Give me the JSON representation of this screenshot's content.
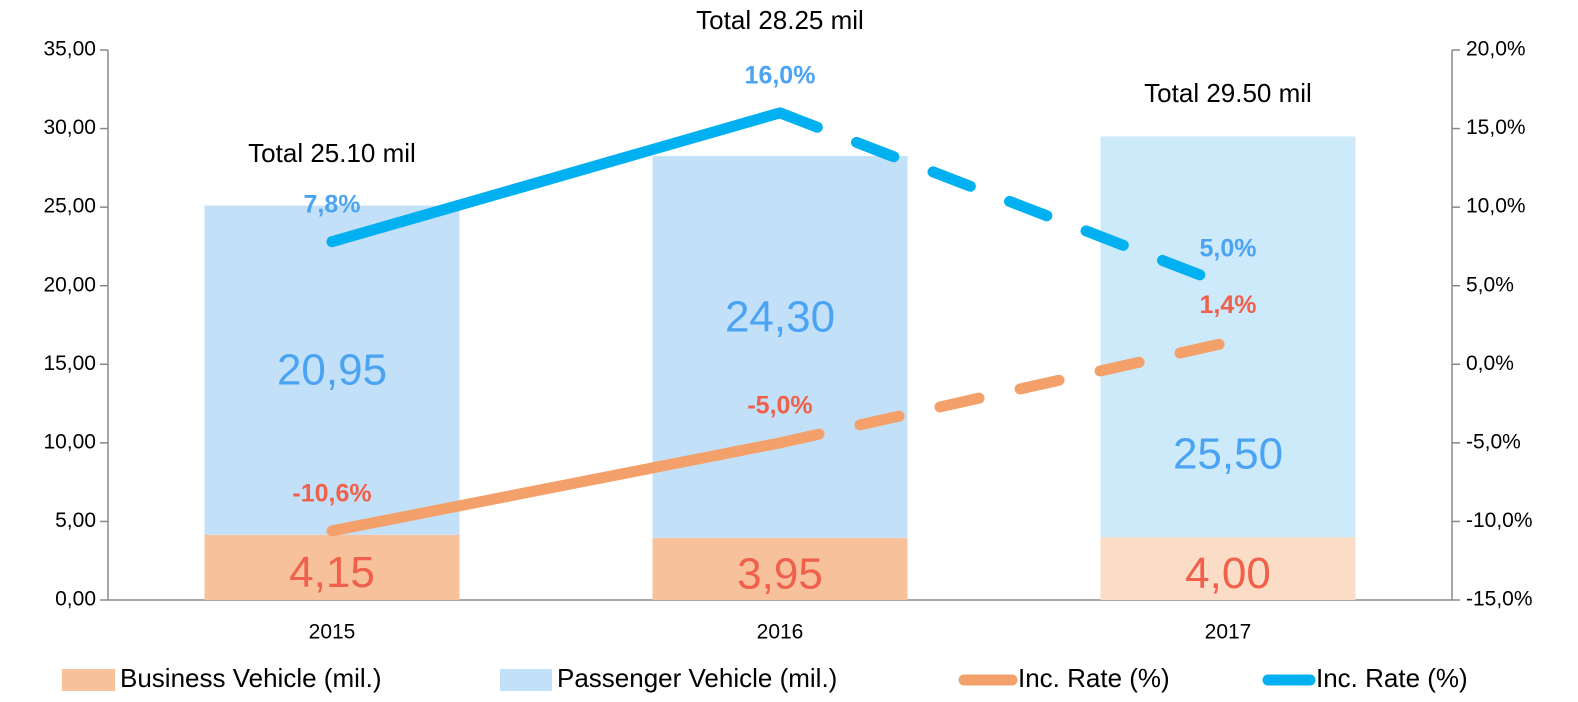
{
  "chart_data": {
    "type": "bar",
    "categories": [
      "2015",
      "2016",
      "2017"
    ],
    "series": [
      {
        "name": "Business Vehicle (mil.)",
        "type": "bar",
        "color": "#f6c19b",
        "colors": [
          "#f6c19b",
          "#f6c19b",
          "#fbdcc6"
        ],
        "label_color": "#f0604a",
        "values": [
          4.15,
          3.95,
          4.0
        ],
        "value_labels": [
          "4,15",
          "3,95",
          "4,00"
        ]
      },
      {
        "name": "Passenger Vehicle (mil.)",
        "type": "bar",
        "color": "#c3e0f9",
        "colors": [
          "#c3e0f9",
          "#c3e0f9",
          "#cdeafb"
        ],
        "label_color": "#4aa3f3",
        "values": [
          20.95,
          24.3,
          25.5
        ],
        "value_labels": [
          "20,95",
          "24,30",
          "25,50"
        ]
      },
      {
        "name": "Inc. Rate (%)",
        "type": "line",
        "axis": "y2",
        "color": "#f4a06a",
        "label_color": "#f0604a",
        "segment_styles": [
          "solid",
          "dashed"
        ],
        "values": [
          -10.6,
          -5.0,
          1.4
        ],
        "value_labels": [
          "-10,6%",
          "-5,0%",
          "1,4%"
        ]
      },
      {
        "name": "Inc. Rate (%)",
        "type": "line",
        "axis": "y2",
        "color": "#00b0f0",
        "label_color": "#4aa3f3",
        "segment_styles": [
          "solid",
          "dashed"
        ],
        "values": [
          7.8,
          16.0,
          5.0
        ],
        "value_labels": [
          "7,8%",
          "16,0%",
          "5,0%"
        ]
      }
    ],
    "annotations": [
      "Total 25.10 mil",
      "Total 28.25 mil",
      "Total 29.50 mil"
    ],
    "ylim": [
      0,
      35
    ],
    "yticks": [
      {
        "value": 0,
        "label": "0,00"
      },
      {
        "value": 5,
        "label": "5,00"
      },
      {
        "value": 10,
        "label": "10,00"
      },
      {
        "value": 15,
        "label": "15,00"
      },
      {
        "value": 20,
        "label": "20,00"
      },
      {
        "value": 25,
        "label": "25,00"
      },
      {
        "value": 30,
        "label": "30,00"
      },
      {
        "value": 35,
        "label": "35,00"
      }
    ],
    "y2lim": [
      -15,
      20
    ],
    "y2ticks": [
      {
        "value": -15,
        "label": "-15,0%"
      },
      {
        "value": -10,
        "label": "-10,0%"
      },
      {
        "value": -5,
        "label": "-5,0%"
      },
      {
        "value": 0,
        "label": "0,0%"
      },
      {
        "value": 5,
        "label": "5,0%"
      },
      {
        "value": 10,
        "label": "10,0%"
      },
      {
        "value": 15,
        "label": "15,0%"
      },
      {
        "value": 20,
        "label": "20,0%"
      }
    ],
    "grid": false,
    "legend": "bottom"
  }
}
